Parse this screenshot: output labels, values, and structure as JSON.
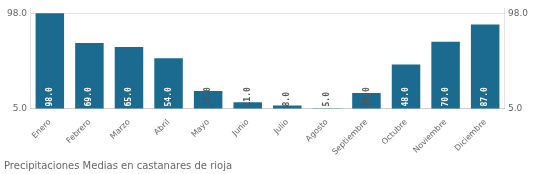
{
  "chart_data": {
    "type": "bar",
    "title": "Precipitaciones Medias en castanares de rioja",
    "categories": [
      "Enero",
      "Febrero",
      "Marzo",
      "Abril",
      "Mayo",
      "Junio",
      "Julio",
      "Agosto",
      "Septiembre",
      "Octubre",
      "Noviembre",
      "Diciembre"
    ],
    "values": [
      98.0,
      69.0,
      65.0,
      54.0,
      22.0,
      11.0,
      8.0,
      5.0,
      20.0,
      48.0,
      70.0,
      87.0
    ],
    "value_labels": [
      "98.0",
      "69.0",
      "65.0",
      "54.0",
      "22.0",
      "11.0",
      "8.0",
      "5.0",
      "20.0",
      "48.0",
      "70.0",
      "87.0"
    ],
    "data_labels": true,
    "color": "#1b6a8f",
    "ylim": [
      5.0,
      102.65
    ],
    "yticks": [
      {
        "value": 5.0,
        "label": "5.0"
      },
      {
        "value": 98.0,
        "label": "98.0"
      }
    ],
    "y2lim": [
      5.0,
      102.65
    ],
    "y2ticks": [
      {
        "value": 5.0,
        "label": "5.0"
      },
      {
        "value": 98.0,
        "label": "98.0"
      }
    ],
    "grid": true
  }
}
